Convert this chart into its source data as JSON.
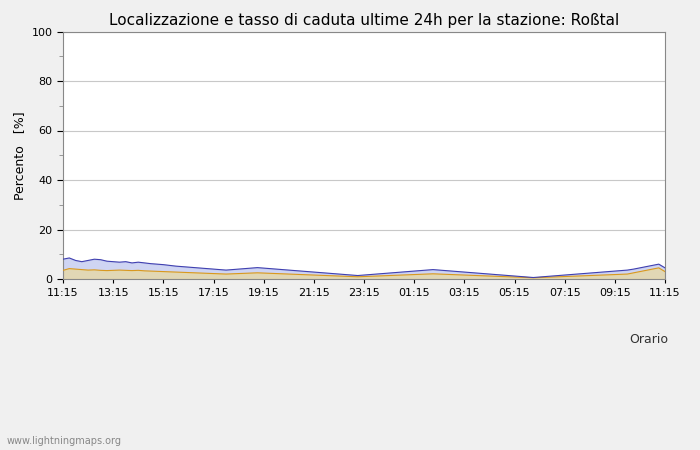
{
  "title": "Localizzazione e tasso di caduta ultime 24h per la stazione: Roßtal",
  "ylabel": "Percento   [%]",
  "xlabel": "Orario",
  "ylim": [
    0,
    100
  ],
  "yticks_major": [
    0,
    20,
    40,
    60,
    80,
    100
  ],
  "yticks_minor": [
    10,
    30,
    50,
    70,
    90
  ],
  "xtick_labels": [
    "11:15",
    "13:15",
    "15:15",
    "17:15",
    "19:15",
    "21:15",
    "23:15",
    "01:15",
    "03:15",
    "05:15",
    "07:15",
    "09:15",
    "11:15"
  ],
  "background_color": "#f0f0f0",
  "plot_bg_color": "#ffffff",
  "grid_color": "#c8c8c8",
  "watermark": "www.lightningmaps.org",
  "n_points": 97,
  "fill1_base": [
    3.5,
    4.2,
    4.0,
    3.8,
    3.6,
    3.7,
    3.5,
    3.4,
    3.5,
    3.6,
    3.5,
    3.4,
    3.5,
    3.3,
    3.2,
    3.1,
    3.0,
    2.9,
    2.8,
    2.7,
    2.6,
    2.5,
    2.4,
    2.3,
    2.2,
    2.1,
    2.0,
    2.1,
    2.2,
    2.3,
    2.4,
    2.5,
    2.4,
    2.3,
    2.2,
    2.1,
    2.0,
    1.9,
    1.8,
    1.7,
    1.6,
    1.5,
    1.4,
    1.3,
    1.2,
    1.1,
    1.0,
    0.9,
    1.0,
    1.1,
    1.2,
    1.3,
    1.4,
    1.5,
    1.6,
    1.7,
    1.8,
    1.9,
    2.0,
    2.1,
    2.0,
    1.9,
    1.8,
    1.7,
    1.6,
    1.5,
    1.4,
    1.3,
    1.2,
    1.1,
    1.0,
    0.9,
    0.8,
    0.7,
    0.6,
    0.5,
    0.6,
    0.7,
    0.8,
    0.9,
    1.0,
    1.1,
    1.2,
    1.3,
    1.4,
    1.5,
    1.6,
    1.7,
    1.8,
    1.9,
    2.0,
    2.5,
    3.0,
    3.5,
    4.0,
    4.5,
    3.0
  ],
  "fill2_base": [
    8.0,
    8.5,
    7.5,
    7.0,
    7.5,
    8.0,
    7.8,
    7.2,
    7.0,
    6.8,
    7.0,
    6.5,
    6.8,
    6.5,
    6.2,
    6.0,
    5.8,
    5.5,
    5.2,
    5.0,
    4.8,
    4.6,
    4.4,
    4.2,
    4.0,
    3.8,
    3.6,
    3.8,
    4.0,
    4.2,
    4.4,
    4.6,
    4.4,
    4.2,
    4.0,
    3.8,
    3.6,
    3.4,
    3.2,
    3.0,
    2.8,
    2.6,
    2.4,
    2.2,
    2.0,
    1.8,
    1.6,
    1.4,
    1.6,
    1.8,
    2.0,
    2.2,
    2.4,
    2.6,
    2.8,
    3.0,
    3.2,
    3.4,
    3.6,
    3.8,
    3.6,
    3.4,
    3.2,
    3.0,
    2.8,
    2.6,
    2.4,
    2.2,
    2.0,
    1.8,
    1.6,
    1.4,
    1.2,
    1.0,
    0.8,
    0.6,
    0.8,
    1.0,
    1.2,
    1.4,
    1.6,
    1.8,
    2.0,
    2.2,
    2.4,
    2.6,
    2.8,
    3.0,
    3.2,
    3.4,
    3.6,
    4.0,
    4.5,
    5.0,
    5.5,
    6.0,
    4.5
  ],
  "fill1_color": "#e8d8a0",
  "fill1_alpha": 0.75,
  "fill2_color": "#c0c8f0",
  "fill2_alpha": 0.75,
  "line1_color": "#d89820",
  "line2_color": "#4040b0",
  "title_fontsize": 11,
  "axis_fontsize": 9,
  "tick_fontsize": 8,
  "legend_fontsize": 8
}
